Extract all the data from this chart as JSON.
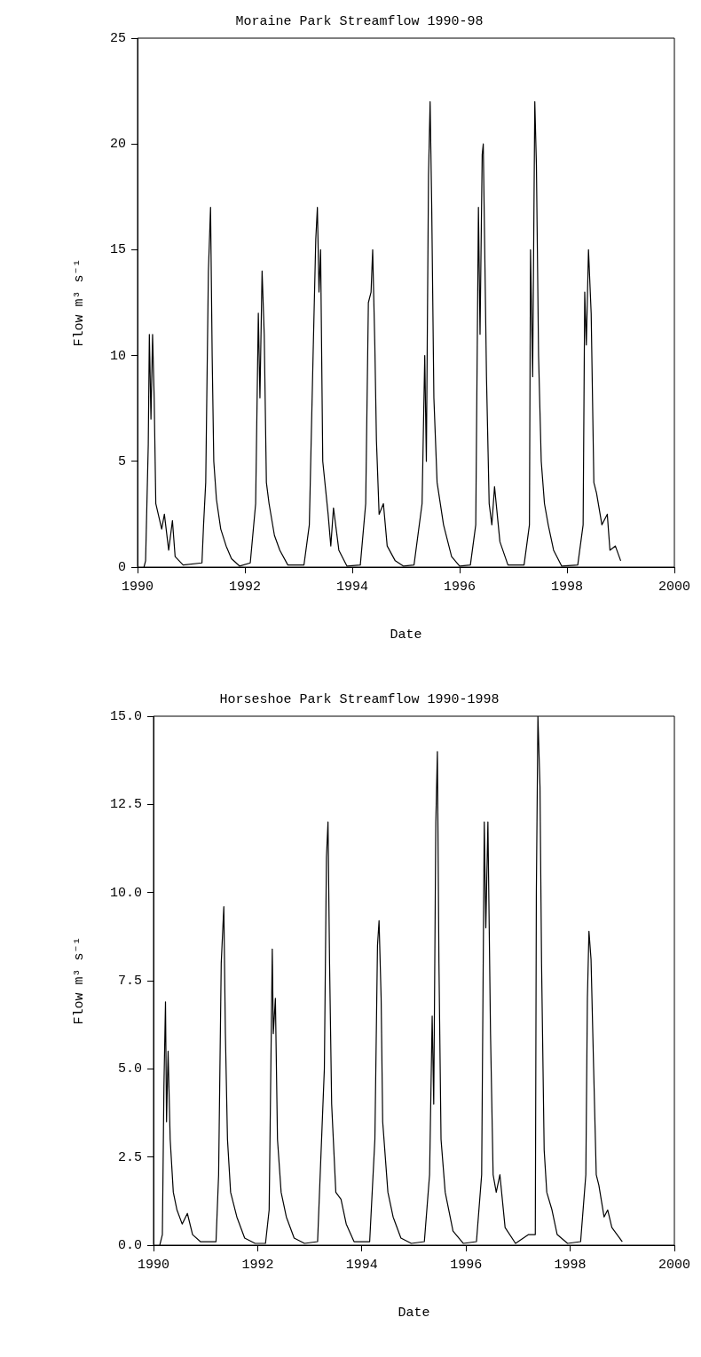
{
  "chart_data": [
    {
      "type": "line",
      "title": "Moraine Park Streamflow 1990-98",
      "xlabel": "Date",
      "ylabel": "Flow m³ s⁻¹",
      "xlim": [
        1990,
        2000
      ],
      "xticks": [
        1990,
        1992,
        1994,
        1996,
        1998,
        2000
      ],
      "ylim": [
        0,
        25
      ],
      "yticks": [
        0,
        5,
        10,
        15,
        20,
        25
      ],
      "grid": false,
      "legend": false,
      "marker": "none",
      "line_style": "solid",
      "series": [
        {
          "color": "#000000",
          "x": [
            1990.12,
            1990.15,
            1990.2,
            1990.22,
            1990.25,
            1990.28,
            1990.31,
            1990.34,
            1990.45,
            1990.5,
            1990.58,
            1990.65,
            1990.7,
            1990.85,
            1991.2,
            1991.23,
            1991.27,
            1991.32,
            1991.36,
            1991.39,
            1991.42,
            1991.47,
            1991.55,
            1991.65,
            1991.75,
            1991.9,
            1992.1,
            1992.2,
            1992.25,
            1992.28,
            1992.32,
            1992.36,
            1992.4,
            1992.45,
            1992.55,
            1992.65,
            1992.8,
            1993.1,
            1993.2,
            1993.27,
            1993.32,
            1993.35,
            1993.38,
            1993.41,
            1993.45,
            1993.55,
            1993.6,
            1993.65,
            1993.75,
            1993.9,
            1994.15,
            1994.25,
            1994.3,
            1994.35,
            1994.38,
            1994.42,
            1994.45,
            1994.5,
            1994.58,
            1994.65,
            1994.8,
            1994.95,
            1995.15,
            1995.3,
            1995.35,
            1995.38,
            1995.42,
            1995.45,
            1995.48,
            1995.52,
            1995.58,
            1995.7,
            1995.85,
            1996.0,
            1996.2,
            1996.3,
            1996.35,
            1996.38,
            1996.42,
            1996.44,
            1996.5,
            1996.55,
            1996.6,
            1996.65,
            1996.75,
            1996.9,
            1997.2,
            1997.3,
            1997.32,
            1997.36,
            1997.4,
            1997.43,
            1997.47,
            1997.52,
            1997.58,
            1997.65,
            1997.75,
            1997.9,
            1998.2,
            1998.3,
            1998.33,
            1998.36,
            1998.4,
            1998.45,
            1998.5,
            1998.55,
            1998.65,
            1998.75,
            1998.8,
            1998.9,
            1999.0
          ],
          "values": [
            0,
            0.3,
            5.8,
            11,
            7,
            11,
            8,
            3,
            1.8,
            2.5,
            0.8,
            2.2,
            0.5,
            0.1,
            0.2,
            2,
            4,
            14,
            17,
            10,
            5,
            3.2,
            1.8,
            1,
            0.4,
            0.05,
            0.2,
            3,
            12,
            8,
            14,
            11,
            4,
            3,
            1.5,
            0.8,
            0.1,
            0.1,
            2,
            10,
            15.5,
            17,
            13,
            15,
            5,
            2.5,
            1,
            2.8,
            0.8,
            0.05,
            0.1,
            3,
            12.5,
            13,
            15,
            10.5,
            6,
            2.5,
            3,
            1,
            0.3,
            0.05,
            0.1,
            3,
            10,
            5,
            18.5,
            22,
            17,
            8,
            4,
            2,
            0.5,
            0.05,
            0.1,
            2,
            17,
            11,
            19.5,
            20,
            9,
            3,
            2,
            3.8,
            1.2,
            0.1,
            0.1,
            2,
            15,
            9,
            22,
            19,
            10,
            5,
            3,
            2,
            0.8,
            0.05,
            0.1,
            2,
            13,
            10.5,
            15,
            12,
            4,
            3.5,
            2,
            2.5,
            0.8,
            1,
            0.3
          ]
        }
      ]
    },
    {
      "type": "line",
      "title": "Horseshoe Park Streamflow 1990-1998",
      "xlabel": "Date",
      "ylabel": "Flow m³ s⁻¹",
      "xlim": [
        1990,
        2000
      ],
      "xticks": [
        1990,
        1992,
        1994,
        1996,
        1998,
        2000
      ],
      "ylim": [
        0,
        15
      ],
      "yticks": [
        {
          "value": 0,
          "label": "0.0"
        },
        {
          "value": 2.5,
          "label": "2.5"
        },
        {
          "value": 5,
          "label": "5.0"
        },
        {
          "value": 7.5,
          "label": "7.5"
        },
        {
          "value": 10,
          "label": "10.0"
        },
        {
          "value": 12.5,
          "label": "12.5"
        },
        {
          "value": 15,
          "label": "15.0"
        }
      ],
      "grid": false,
      "legend": false,
      "marker": "none",
      "line_style": "solid",
      "series": [
        {
          "color": "#000000",
          "x": [
            1990.12,
            1990.17,
            1990.2,
            1990.23,
            1990.25,
            1990.28,
            1990.32,
            1990.38,
            1990.45,
            1990.55,
            1990.65,
            1990.75,
            1990.9,
            1991.2,
            1991.25,
            1991.3,
            1991.35,
            1991.38,
            1991.42,
            1991.48,
            1991.6,
            1991.75,
            1991.95,
            1992.15,
            1992.22,
            1992.28,
            1992.3,
            1992.34,
            1992.38,
            1992.45,
            1992.55,
            1992.7,
            1992.9,
            1993.15,
            1993.2,
            1993.28,
            1993.32,
            1993.35,
            1993.38,
            1993.42,
            1993.5,
            1993.6,
            1993.7,
            1993.85,
            1994.15,
            1994.25,
            1994.3,
            1994.33,
            1994.37,
            1994.4,
            1994.5,
            1994.6,
            1994.75,
            1994.95,
            1995.2,
            1995.3,
            1995.35,
            1995.38,
            1995.42,
            1995.45,
            1995.48,
            1995.52,
            1995.6,
            1995.75,
            1995.95,
            1996.2,
            1996.3,
            1996.35,
            1996.38,
            1996.42,
            1996.47,
            1996.52,
            1996.58,
            1996.65,
            1996.75,
            1996.95,
            1997.2,
            1997.33,
            1997.35,
            1997.38,
            1997.42,
            1997.45,
            1997.5,
            1997.55,
            1997.65,
            1997.75,
            1997.95,
            1998.2,
            1998.3,
            1998.33,
            1998.36,
            1998.4,
            1998.45,
            1998.5,
            1998.55,
            1998.65,
            1998.72,
            1998.8,
            1998.95,
            1999.0
          ],
          "values": [
            0,
            0.3,
            4.5,
            6.9,
            3.5,
            5.5,
            3,
            1.5,
            1,
            0.6,
            0.9,
            0.3,
            0.1,
            0.1,
            2,
            8,
            9.6,
            6,
            3,
            1.5,
            0.8,
            0.2,
            0.05,
            0.05,
            1,
            8.4,
            6,
            7,
            3,
            1.5,
            0.8,
            0.2,
            0.05,
            0.1,
            2,
            5,
            11,
            12,
            8,
            4,
            1.5,
            1.3,
            0.6,
            0.1,
            0.1,
            3,
            8.5,
            9.2,
            7,
            3.5,
            1.5,
            0.8,
            0.2,
            0.05,
            0.1,
            2,
            6.5,
            4,
            12,
            14,
            8,
            3,
            1.5,
            0.4,
            0.05,
            0.1,
            2,
            12,
            9,
            12,
            6,
            2,
            1.5,
            2,
            0.5,
            0.05,
            0.3,
            0.3,
            10,
            15,
            13,
            8,
            2.7,
            1.5,
            1,
            0.3,
            0.05,
            0.1,
            2,
            7,
            8.9,
            8.1,
            5,
            2,
            1.7,
            0.8,
            1,
            0.5,
            0.2,
            0.1
          ]
        }
      ]
    }
  ]
}
